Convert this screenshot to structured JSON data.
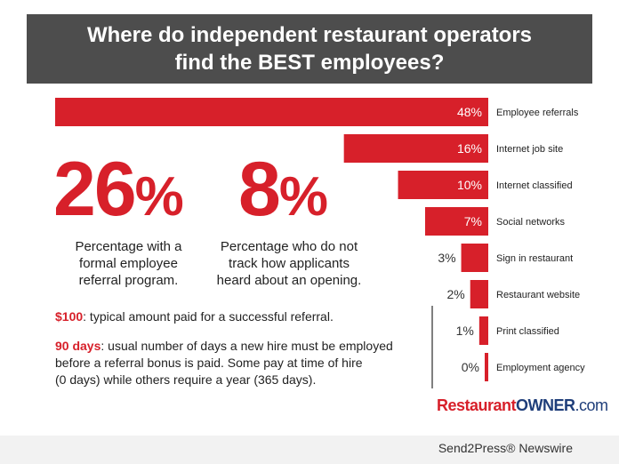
{
  "header": {
    "title_line1": "Where do independent restaurant operators",
    "title_line2": "find the BEST employees?"
  },
  "stats": [
    {
      "value": "26",
      "unit": "%",
      "label_lines": [
        "Percentage with a",
        "formal employee",
        "referral program."
      ]
    },
    {
      "value": "8",
      "unit": "%",
      "label_lines": [
        "Percentage who do not",
        "track how applicants",
        "heard about an opening."
      ]
    }
  ],
  "notes": {
    "amount_highlight": "$100",
    "amount_text": ": typical amount paid for a successful referral.",
    "days_highlight": "90 days",
    "days_text_line1": ": usual number of days a new hire must be employed",
    "days_text_line2": "before a referral bonus is paid. Some pay at time of hire",
    "days_text_line3": "(0 days) while others require a year (365 days)."
  },
  "logo": {
    "part1": "Restaurant",
    "part2": "OWNER",
    "part3": ".com"
  },
  "footer": {
    "text": "Send2Press® Newswire"
  },
  "colors": {
    "bar": "#d7202a",
    "header_bg": "#4d4d4d",
    "logo_blue": "#1f3e7a"
  },
  "chart_data": {
    "type": "bar",
    "orientation": "horizontal",
    "categories": [
      "Employee referrals",
      "Internet job site",
      "Internet classified",
      "Social networks",
      "Sign in restaurant",
      "Restaurant website",
      "Print classified",
      "Employment agency"
    ],
    "values": [
      48,
      16,
      10,
      7,
      3,
      2,
      1,
      0
    ],
    "value_labels": [
      "48%",
      "16%",
      "10%",
      "7%",
      "3%",
      "2%",
      "1%",
      "0%"
    ],
    "unit": "%",
    "title": "Where do independent restaurant operators find the BEST employees?",
    "xlim": [
      0,
      48
    ]
  }
}
